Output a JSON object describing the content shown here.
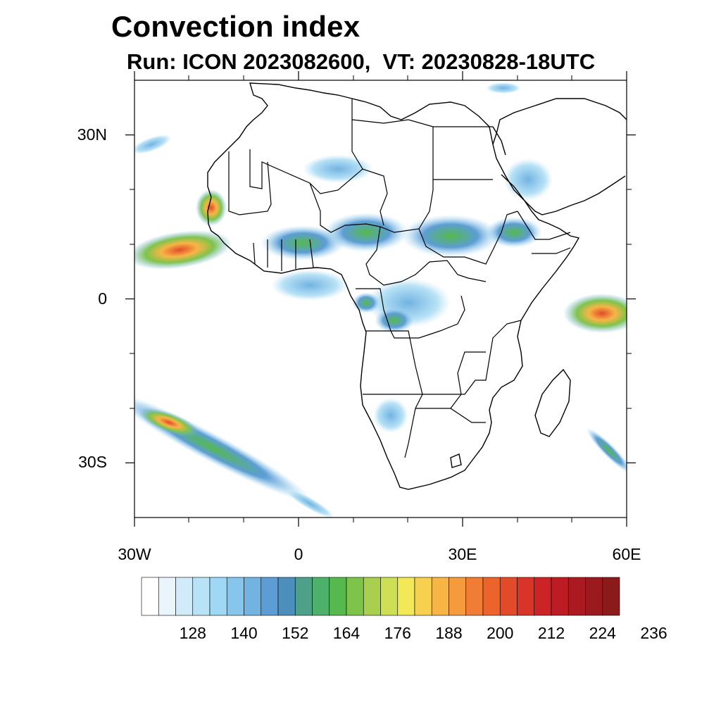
{
  "figure": {
    "title": "Convection index",
    "subtitle": "Run: ICON 2023082600,  VT: 20230828-18UTC"
  },
  "axes": {
    "lat_ticks": [
      {
        "value": 30,
        "label": "30N"
      },
      {
        "value": 0,
        "label": "0"
      },
      {
        "value": -30,
        "label": "30S"
      }
    ],
    "lon_ticks": [
      {
        "value": -30,
        "label": "30W"
      },
      {
        "value": 0,
        "label": "0"
      },
      {
        "value": 30,
        "label": "30E"
      },
      {
        "value": 60,
        "label": "60E"
      }
    ],
    "lon_range": [
      -30,
      60
    ],
    "lat_range": [
      -40,
      40
    ]
  },
  "colorbar": {
    "colors": [
      "#ffffff",
      "#e9f4fb",
      "#d1ebf8",
      "#b8e2f6",
      "#9fd8f4",
      "#87c6ec",
      "#72b3e2",
      "#5c9dd5",
      "#4c8fbc",
      "#4fa089",
      "#4db06b",
      "#55b94d",
      "#7ec44b",
      "#a8cf4e",
      "#cedf56",
      "#f3e858",
      "#f8d04f",
      "#f7b546",
      "#f59a3d",
      "#f17d34",
      "#ec632c",
      "#e24b29",
      "#d83428",
      "#cc2327",
      "#bd1c24",
      "#ac1a21",
      "#9b1a1e",
      "#8b1a1a"
    ],
    "labels": [
      {
        "value": 128,
        "text": "128"
      },
      {
        "value": 140,
        "text": "140"
      },
      {
        "value": 152,
        "text": "152"
      },
      {
        "value": 164,
        "text": "164"
      },
      {
        "value": 176,
        "text": "176"
      },
      {
        "value": 188,
        "text": "188"
      },
      {
        "value": 200,
        "text": "200"
      },
      {
        "value": 212,
        "text": "212"
      },
      {
        "value": 224,
        "text": "224"
      },
      {
        "value": 236,
        "text": "236"
      }
    ]
  }
}
